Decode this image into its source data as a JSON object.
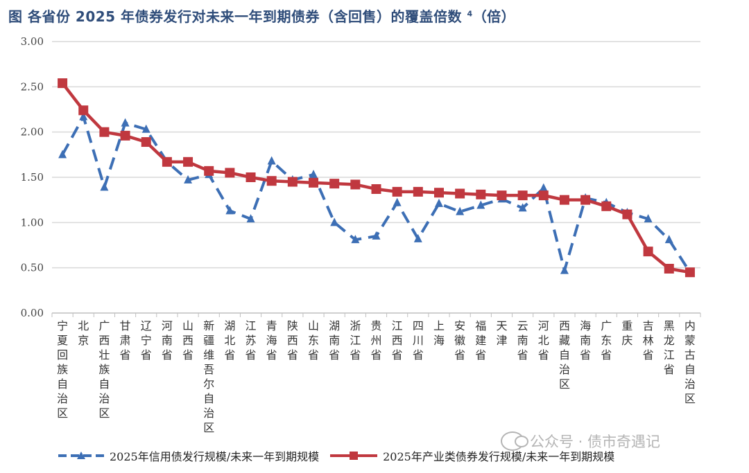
{
  "title": {
    "text": "图  各省份 2025 年债券发行对未来一年到期债券（含回售）的覆盖倍数",
    "superscript": "4",
    "suffix": "（倍）"
  },
  "watermark": "公众号 · 债市奇遇记",
  "colors": {
    "series1": "#3d6fb5",
    "series2": "#c0383f",
    "grid": "#d9d9d9",
    "title": "#2f4d7a"
  },
  "chart_data": {
    "type": "line",
    "categories": [
      "宁夏回族自治区",
      "北京",
      "广西壮族自治区",
      "甘肃省",
      "辽宁省",
      "河南省",
      "山西省",
      "新疆维吾尔自治区",
      "湖北省",
      "江苏省",
      "青海省",
      "陕西省",
      "山东省",
      "湖南省",
      "浙江省",
      "贵州省",
      "江西省",
      "四川省",
      "上海",
      "安徽省",
      "福建省",
      "天津",
      "云南省",
      "河北省",
      "西藏自治区",
      "海南省",
      "广东省",
      "重庆",
      "吉林省",
      "黑龙江省",
      "内蒙古自治区"
    ],
    "series": [
      {
        "name": "2025年信用债发行规模/未来一年到期规模",
        "style": "dashed-triangle",
        "values": [
          1.75,
          2.17,
          1.39,
          2.1,
          2.03,
          1.67,
          1.47,
          1.53,
          1.13,
          1.04,
          1.68,
          1.47,
          1.53,
          1.0,
          0.81,
          0.85,
          1.22,
          0.82,
          1.21,
          1.12,
          1.19,
          1.26,
          1.16,
          1.38,
          0.47,
          1.27,
          1.22,
          1.11,
          1.04,
          0.81,
          0.45
        ]
      },
      {
        "name": "2025年产业类债券发行规模/未来一年到期规模",
        "style": "solid-square",
        "values": [
          2.54,
          2.24,
          2.0,
          1.96,
          1.89,
          1.67,
          1.67,
          1.57,
          1.55,
          1.5,
          1.46,
          1.45,
          1.44,
          1.43,
          1.42,
          1.37,
          1.34,
          1.34,
          1.33,
          1.32,
          1.31,
          1.3,
          1.3,
          1.3,
          1.25,
          1.25,
          1.18,
          1.09,
          0.68,
          0.49,
          0.45
        ]
      }
    ],
    "ylim": [
      0,
      3
    ],
    "y_ticks": [
      "0.00",
      "0.50",
      "1.00",
      "1.50",
      "2.00",
      "2.50",
      "3.00"
    ],
    "grid": true,
    "legend_position": "bottom"
  }
}
